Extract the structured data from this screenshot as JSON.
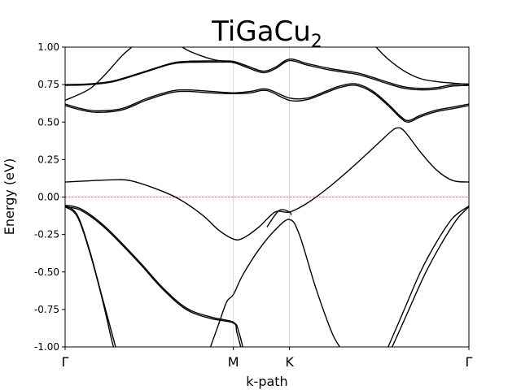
{
  "chart_data": {
    "type": "line",
    "title": "TiGaCu",
    "title_subscript": "2",
    "xlabel": "k-path",
    "ylabel": "Energy (eV)",
    "ylim": [
      -1.0,
      1.0
    ],
    "xlim": [
      0,
      1
    ],
    "yticks": [
      "-1.00",
      "-0.75",
      "-0.50",
      "-0.25",
      "0.00",
      "0.25",
      "0.50",
      "0.75",
      "1.00"
    ],
    "ytick_values": [
      -1.0,
      -0.75,
      -0.5,
      -0.25,
      0.0,
      0.25,
      0.5,
      0.75,
      1.0
    ],
    "high_symmetry_points": [
      {
        "label": "Γ",
        "x": 0.0
      },
      {
        "label": "M",
        "x": 0.4167
      },
      {
        "label": "K",
        "x": 0.5556
      },
      {
        "label": "Γ",
        "x": 1.0
      }
    ],
    "fermi_level": 0.0,
    "fermi_color": "#e03030",
    "band_color": "#000000",
    "grid_color": "#cccccc",
    "series": [
      {
        "values": [
          [
            0,
            0.645
          ],
          [
            0.06,
            0.72
          ],
          [
            0.1,
            0.82
          ],
          [
            0.14,
            0.94
          ],
          [
            0.165,
            1.0
          ]
        ]
      },
      {
        "values": [
          [
            0,
            0.75
          ],
          [
            0.06,
            0.755
          ],
          [
            0.12,
            0.775
          ],
          [
            0.2,
            0.84
          ],
          [
            0.26,
            0.89
          ],
          [
            0.3,
            0.905
          ],
          [
            0.38,
            0.908
          ],
          [
            0.4167,
            0.905
          ],
          [
            0.45,
            0.875
          ],
          [
            0.49,
            0.84
          ],
          [
            0.52,
            0.865
          ],
          [
            0.5556,
            0.92
          ],
          [
            0.6,
            0.89
          ],
          [
            0.66,
            0.855
          ],
          [
            0.72,
            0.83
          ],
          [
            0.76,
            0.8
          ],
          [
            0.8,
            0.765
          ],
          [
            0.84,
            0.735
          ],
          [
            0.88,
            0.725
          ],
          [
            0.92,
            0.73
          ],
          [
            0.96,
            0.75
          ],
          [
            1.0,
            0.755
          ]
        ]
      },
      {
        "values": [
          [
            0,
            0.745
          ],
          [
            0.06,
            0.75
          ],
          [
            0.12,
            0.77
          ],
          [
            0.2,
            0.835
          ],
          [
            0.26,
            0.885
          ],
          [
            0.3,
            0.898
          ],
          [
            0.38,
            0.9
          ],
          [
            0.4167,
            0.897
          ],
          [
            0.45,
            0.865
          ],
          [
            0.49,
            0.83
          ],
          [
            0.52,
            0.855
          ],
          [
            0.5556,
            0.91
          ],
          [
            0.6,
            0.88
          ],
          [
            0.66,
            0.845
          ],
          [
            0.72,
            0.82
          ],
          [
            0.76,
            0.79
          ],
          [
            0.8,
            0.755
          ],
          [
            0.84,
            0.725
          ],
          [
            0.88,
            0.715
          ],
          [
            0.92,
            0.72
          ],
          [
            0.96,
            0.74
          ],
          [
            1.0,
            0.745
          ]
        ]
      },
      {
        "values": [
          [
            0.29,
            1.0
          ],
          [
            0.31,
            0.97
          ],
          [
            0.35,
            0.93
          ],
          [
            0.38,
            0.91
          ],
          [
            0.4167,
            0.905
          ]
        ]
      },
      {
        "values": [
          [
            0,
            0.62
          ],
          [
            0.04,
            0.59
          ],
          [
            0.08,
            0.575
          ],
          [
            0.14,
            0.59
          ],
          [
            0.2,
            0.655
          ],
          [
            0.26,
            0.705
          ],
          [
            0.3,
            0.715
          ],
          [
            0.36,
            0.705
          ],
          [
            0.4167,
            0.695
          ],
          [
            0.46,
            0.705
          ],
          [
            0.5,
            0.72
          ],
          [
            0.5556,
            0.66
          ],
          [
            0.6,
            0.66
          ],
          [
            0.64,
            0.7
          ],
          [
            0.68,
            0.74
          ],
          [
            0.72,
            0.755
          ],
          [
            0.76,
            0.71
          ],
          [
            0.8,
            0.62
          ],
          [
            0.83,
            0.54
          ],
          [
            0.85,
            0.51
          ],
          [
            0.88,
            0.545
          ],
          [
            0.92,
            0.58
          ],
          [
            0.96,
            0.6
          ],
          [
            1.0,
            0.62
          ]
        ]
      },
      {
        "values": [
          [
            0,
            0.61
          ],
          [
            0.04,
            0.58
          ],
          [
            0.08,
            0.565
          ],
          [
            0.14,
            0.58
          ],
          [
            0.2,
            0.645
          ],
          [
            0.26,
            0.695
          ],
          [
            0.3,
            0.705
          ],
          [
            0.36,
            0.695
          ],
          [
            0.4167,
            0.69
          ],
          [
            0.46,
            0.695
          ],
          [
            0.5,
            0.71
          ],
          [
            0.5556,
            0.645
          ],
          [
            0.6,
            0.65
          ],
          [
            0.64,
            0.69
          ],
          [
            0.68,
            0.73
          ],
          [
            0.72,
            0.745
          ],
          [
            0.76,
            0.7
          ],
          [
            0.8,
            0.61
          ],
          [
            0.83,
            0.53
          ],
          [
            0.85,
            0.5
          ],
          [
            0.88,
            0.535
          ],
          [
            0.92,
            0.57
          ],
          [
            0.96,
            0.59
          ],
          [
            1.0,
            0.61
          ]
        ]
      },
      {
        "values": [
          [
            0,
            0.1
          ],
          [
            0.06,
            0.108
          ],
          [
            0.12,
            0.115
          ],
          [
            0.16,
            0.11
          ],
          [
            0.22,
            0.06
          ],
          [
            0.28,
            -0.01
          ],
          [
            0.34,
            -0.12
          ],
          [
            0.38,
            -0.22
          ],
          [
            0.4167,
            -0.28
          ],
          [
            0.44,
            -0.275
          ],
          [
            0.48,
            -0.2
          ],
          [
            0.52,
            -0.1
          ],
          [
            0.5556,
            -0.1
          ],
          [
            0.6,
            -0.04
          ],
          [
            0.66,
            0.08
          ],
          [
            0.72,
            0.22
          ],
          [
            0.78,
            0.37
          ],
          [
            0.8,
            0.42
          ],
          [
            0.82,
            0.46
          ],
          [
            0.84,
            0.44
          ],
          [
            0.88,
            0.3
          ],
          [
            0.92,
            0.18
          ],
          [
            0.96,
            0.11
          ],
          [
            1.0,
            0.1
          ]
        ]
      },
      {
        "values": [
          [
            0,
            -0.055
          ],
          [
            0.04,
            -0.08
          ],
          [
            0.1,
            -0.2
          ],
          [
            0.18,
            -0.42
          ],
          [
            0.24,
            -0.6
          ],
          [
            0.3,
            -0.74
          ],
          [
            0.36,
            -0.8
          ],
          [
            0.4167,
            -0.835
          ],
          [
            0.43,
            -0.9
          ],
          [
            0.44,
            -1.0
          ]
        ]
      },
      {
        "values": [
          [
            0,
            -0.065
          ],
          [
            0.04,
            -0.09
          ],
          [
            0.1,
            -0.21
          ],
          [
            0.18,
            -0.43
          ],
          [
            0.24,
            -0.61
          ],
          [
            0.3,
            -0.75
          ],
          [
            0.36,
            -0.81
          ],
          [
            0.4167,
            -0.84
          ],
          [
            0.425,
            -0.9
          ],
          [
            0.435,
            -1.0
          ]
        ]
      },
      {
        "values": [
          [
            0,
            -0.055
          ],
          [
            0.03,
            -0.12
          ],
          [
            0.06,
            -0.35
          ],
          [
            0.09,
            -0.65
          ],
          [
            0.12,
            -0.95
          ],
          [
            0.125,
            -1.0
          ]
        ]
      },
      {
        "values": [
          [
            0,
            -0.065
          ],
          [
            0.03,
            -0.13
          ],
          [
            0.06,
            -0.36
          ],
          [
            0.09,
            -0.66
          ],
          [
            0.115,
            -0.95
          ],
          [
            0.12,
            -1.0
          ]
        ]
      },
      {
        "values": [
          [
            0.36,
            -1.0
          ],
          [
            0.38,
            -0.85
          ],
          [
            0.4,
            -0.7
          ],
          [
            0.4167,
            -0.65
          ],
          [
            0.44,
            -0.52
          ],
          [
            0.48,
            -0.35
          ],
          [
            0.52,
            -0.22
          ],
          [
            0.5556,
            -0.15
          ],
          [
            0.58,
            -0.25
          ],
          [
            0.62,
            -0.6
          ],
          [
            0.66,
            -0.9
          ],
          [
            0.68,
            -1.0
          ]
        ]
      },
      {
        "values": [
          [
            0.5,
            -0.2
          ],
          [
            0.53,
            -0.09
          ],
          [
            0.5556,
            -0.1
          ],
          [
            0.56,
            -0.12
          ]
        ]
      },
      {
        "values": [
          [
            0.8,
            -1.0
          ],
          [
            0.84,
            -0.75
          ],
          [
            0.88,
            -0.5
          ],
          [
            0.92,
            -0.3
          ],
          [
            0.96,
            -0.14
          ],
          [
            1.0,
            -0.06
          ]
        ]
      },
      {
        "values": [
          [
            0.81,
            -1.0
          ],
          [
            0.85,
            -0.76
          ],
          [
            0.89,
            -0.52
          ],
          [
            0.93,
            -0.32
          ],
          [
            0.97,
            -0.15
          ],
          [
            1.0,
            -0.065
          ]
        ]
      },
      {
        "values": [
          [
            0.77,
            1.0
          ],
          [
            0.8,
            0.92
          ],
          [
            0.84,
            0.84
          ],
          [
            0.88,
            0.79
          ],
          [
            0.92,
            0.77
          ],
          [
            0.96,
            0.76
          ],
          [
            1.0,
            0.75
          ]
        ]
      }
    ]
  }
}
